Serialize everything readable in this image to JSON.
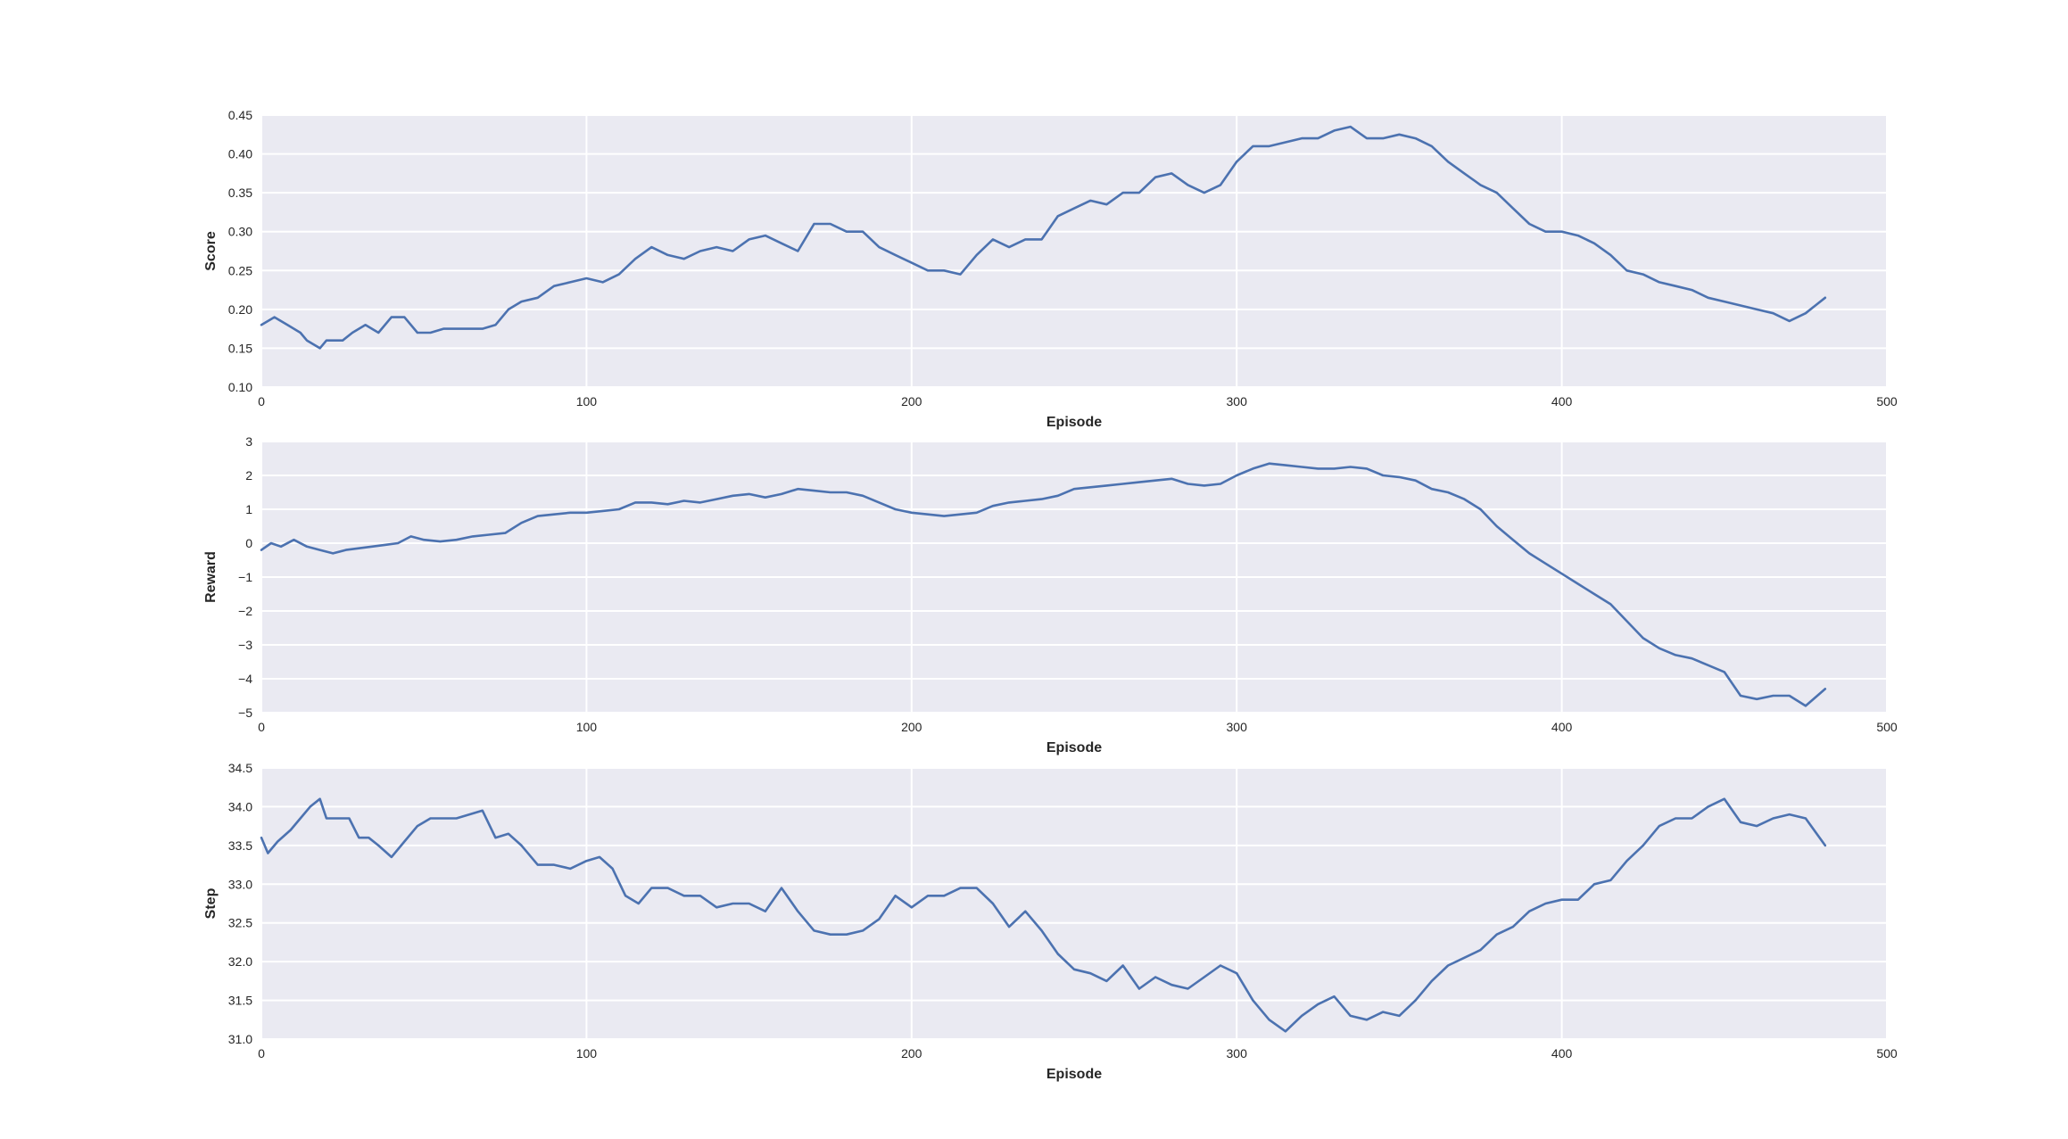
{
  "chart_data": [
    {
      "type": "line",
      "xlabel": "Episode",
      "ylabel": "Score",
      "xlim": [
        0,
        500
      ],
      "ylim": [
        0.1,
        0.45
      ],
      "xticks": [
        "0",
        "100",
        "200",
        "300",
        "400",
        "500"
      ],
      "yticks": [
        "0.10",
        "0.15",
        "0.20",
        "0.25",
        "0.30",
        "0.35",
        "0.40",
        "0.45"
      ],
      "grid": true,
      "color": "#4c72b0",
      "series": [
        {
          "x": [
            0,
            4,
            8,
            12,
            14,
            18,
            20,
            25,
            28,
            32,
            36,
            40,
            44,
            48,
            52,
            56,
            60,
            64,
            68,
            72,
            76,
            80,
            85,
            90,
            95,
            100,
            105,
            110,
            115,
            120,
            125,
            130,
            135,
            140,
            145,
            150,
            155,
            160,
            165,
            170,
            175,
            180,
            185,
            190,
            195,
            200,
            205,
            210,
            215,
            220,
            225,
            230,
            235,
            240,
            245,
            250,
            255,
            260,
            265,
            270,
            275,
            280,
            285,
            290,
            295,
            300,
            305,
            310,
            315,
            320,
            325,
            330,
            335,
            340,
            345,
            350,
            355,
            360,
            365,
            370,
            375,
            380,
            385,
            390,
            395,
            400,
            405,
            410,
            415,
            420,
            425,
            430,
            435,
            440,
            445,
            450,
            455,
            460,
            465,
            470,
            475,
            481
          ],
          "y": [
            0.18,
            0.19,
            0.18,
            0.17,
            0.16,
            0.15,
            0.16,
            0.16,
            0.17,
            0.18,
            0.17,
            0.19,
            0.19,
            0.17,
            0.17,
            0.175,
            0.175,
            0.175,
            0.175,
            0.18,
            0.2,
            0.21,
            0.215,
            0.23,
            0.235,
            0.24,
            0.235,
            0.245,
            0.265,
            0.28,
            0.27,
            0.265,
            0.275,
            0.28,
            0.275,
            0.29,
            0.295,
            0.285,
            0.275,
            0.31,
            0.31,
            0.3,
            0.3,
            0.28,
            0.27,
            0.26,
            0.25,
            0.25,
            0.245,
            0.27,
            0.29,
            0.28,
            0.29,
            0.29,
            0.32,
            0.33,
            0.34,
            0.335,
            0.35,
            0.35,
            0.37,
            0.375,
            0.36,
            0.35,
            0.36,
            0.39,
            0.41,
            0.41,
            0.415,
            0.42,
            0.42,
            0.43,
            0.435,
            0.42,
            0.42,
            0.425,
            0.42,
            0.41,
            0.39,
            0.375,
            0.36,
            0.35,
            0.33,
            0.31,
            0.3,
            0.3,
            0.295,
            0.285,
            0.27,
            0.25,
            0.245,
            0.235,
            0.23,
            0.225,
            0.215,
            0.21,
            0.205,
            0.2,
            0.195,
            0.185,
            0.195,
            0.215
          ]
        }
      ]
    },
    {
      "type": "line",
      "xlabel": "Episode",
      "ylabel": "Reward",
      "xlim": [
        0,
        500
      ],
      "ylim": [
        -5,
        3
      ],
      "xticks": [
        "0",
        "100",
        "200",
        "300",
        "400",
        "500"
      ],
      "yticks": [
        "−5",
        "−4",
        "−3",
        "−2",
        "−1",
        "0",
        "1",
        "2",
        "3"
      ],
      "grid": true,
      "color": "#4c72b0",
      "series": [
        {
          "x": [
            0,
            3,
            6,
            10,
            14,
            18,
            22,
            26,
            30,
            34,
            38,
            42,
            46,
            50,
            55,
            60,
            65,
            70,
            75,
            80,
            85,
            90,
            95,
            100,
            105,
            110,
            115,
            120,
            125,
            130,
            135,
            140,
            145,
            150,
            155,
            160,
            165,
            170,
            175,
            180,
            185,
            190,
            195,
            200,
            205,
            210,
            215,
            220,
            225,
            230,
            235,
            240,
            245,
            250,
            255,
            260,
            265,
            270,
            275,
            280,
            285,
            290,
            295,
            300,
            305,
            310,
            315,
            320,
            325,
            330,
            335,
            340,
            345,
            350,
            355,
            360,
            365,
            370,
            375,
            380,
            385,
            390,
            395,
            400,
            405,
            410,
            415,
            420,
            425,
            430,
            435,
            440,
            445,
            450,
            455,
            460,
            465,
            470,
            475,
            481
          ],
          "y": [
            -0.2,
            0.0,
            -0.1,
            0.1,
            -0.1,
            -0.2,
            -0.3,
            -0.2,
            -0.15,
            -0.1,
            -0.05,
            0.0,
            0.2,
            0.1,
            0.05,
            0.1,
            0.2,
            0.25,
            0.3,
            0.6,
            0.8,
            0.85,
            0.9,
            0.9,
            0.95,
            1.0,
            1.2,
            1.2,
            1.15,
            1.25,
            1.2,
            1.3,
            1.4,
            1.45,
            1.35,
            1.45,
            1.6,
            1.55,
            1.5,
            1.5,
            1.4,
            1.2,
            1.0,
            0.9,
            0.85,
            0.8,
            0.85,
            0.9,
            1.1,
            1.2,
            1.25,
            1.3,
            1.4,
            1.6,
            1.65,
            1.7,
            1.75,
            1.8,
            1.85,
            1.9,
            1.75,
            1.7,
            1.75,
            2.0,
            2.2,
            2.35,
            2.3,
            2.25,
            2.2,
            2.2,
            2.25,
            2.2,
            2.0,
            1.95,
            1.85,
            1.6,
            1.5,
            1.3,
            1.0,
            0.5,
            0.1,
            -0.3,
            -0.6,
            -0.9,
            -1.2,
            -1.5,
            -1.8,
            -2.3,
            -2.8,
            -3.1,
            -3.3,
            -3.4,
            -3.6,
            -3.8,
            -4.5,
            -4.6,
            -4.5,
            -4.5,
            -4.8,
            -4.3
          ]
        }
      ]
    },
    {
      "type": "line",
      "xlabel": "Episode",
      "ylabel": "Step",
      "xlim": [
        0,
        500
      ],
      "ylim": [
        31.0,
        34.5
      ],
      "xticks": [
        "0",
        "100",
        "200",
        "300",
        "400",
        "500"
      ],
      "yticks": [
        "31.0",
        "31.5",
        "32.0",
        "32.5",
        "33.0",
        "33.5",
        "34.0",
        "34.5"
      ],
      "grid": true,
      "color": "#4c72b0",
      "series": [
        {
          "x": [
            0,
            2,
            5,
            9,
            12,
            15,
            18,
            20,
            23,
            27,
            30,
            33,
            36,
            40,
            44,
            48,
            52,
            56,
            60,
            64,
            68,
            72,
            76,
            80,
            85,
            90,
            95,
            100,
            104,
            108,
            112,
            116,
            120,
            125,
            130,
            135,
            140,
            145,
            150,
            155,
            160,
            165,
            170,
            175,
            180,
            185,
            190,
            195,
            200,
            205,
            210,
            215,
            220,
            225,
            230,
            235,
            240,
            245,
            250,
            255,
            260,
            265,
            270,
            275,
            280,
            285,
            290,
            295,
            300,
            305,
            310,
            315,
            320,
            325,
            330,
            335,
            340,
            345,
            350,
            355,
            360,
            365,
            370,
            375,
            380,
            385,
            390,
            395,
            400,
            405,
            410,
            415,
            420,
            425,
            430,
            435,
            440,
            445,
            450,
            455,
            460,
            465,
            470,
            475,
            481
          ],
          "y": [
            33.6,
            33.4,
            33.55,
            33.7,
            33.85,
            34.0,
            34.1,
            33.85,
            33.85,
            33.85,
            33.6,
            33.6,
            33.5,
            33.35,
            33.55,
            33.75,
            33.85,
            33.85,
            33.85,
            33.9,
            33.95,
            33.6,
            33.65,
            33.5,
            33.25,
            33.25,
            33.2,
            33.3,
            33.35,
            33.2,
            32.85,
            32.75,
            32.95,
            32.95,
            32.85,
            32.85,
            32.7,
            32.75,
            32.75,
            32.65,
            32.95,
            32.65,
            32.4,
            32.35,
            32.35,
            32.4,
            32.55,
            32.85,
            32.7,
            32.85,
            32.85,
            32.95,
            32.95,
            32.75,
            32.45,
            32.65,
            32.4,
            32.1,
            31.9,
            31.85,
            31.75,
            31.95,
            31.65,
            31.8,
            31.7,
            31.65,
            31.8,
            31.95,
            31.85,
            31.5,
            31.25,
            31.1,
            31.3,
            31.45,
            31.55,
            31.3,
            31.25,
            31.35,
            31.3,
            31.5,
            31.75,
            31.95,
            32.05,
            32.15,
            32.35,
            32.45,
            32.65,
            32.75,
            32.8,
            32.8,
            33.0,
            33.05,
            33.3,
            33.5,
            33.75,
            33.85,
            33.85,
            34.0,
            34.1,
            33.8,
            33.75,
            33.85,
            33.9,
            33.85,
            33.5
          ]
        }
      ]
    }
  ]
}
